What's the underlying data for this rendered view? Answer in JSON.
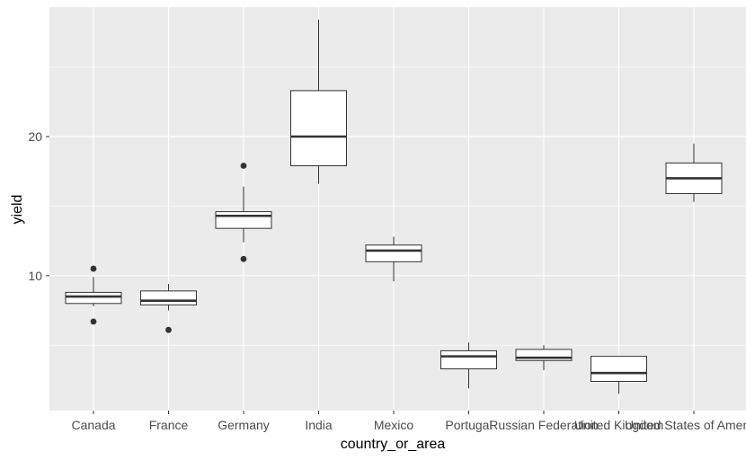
{
  "chart_data": {
    "type": "boxplot",
    "xlabel": "country_or_area",
    "ylabel": "yield",
    "ylim": [
      0.3,
      29.3
    ],
    "yticks": [
      10,
      20
    ],
    "grid": true,
    "categories": [
      "Canada",
      "France",
      "Germany",
      "India",
      "Mexico",
      "Portugal",
      "Russian Federation",
      "United Kingdom",
      "United States of America"
    ],
    "boxes": [
      {
        "category": "Canada",
        "whisker_low": 7.8,
        "q1": 8.0,
        "median": 8.5,
        "q3": 8.8,
        "whisker_high": 9.9,
        "outliers": [
          6.7,
          10.5
        ]
      },
      {
        "category": "France",
        "whisker_low": 7.5,
        "q1": 7.9,
        "median": 8.2,
        "q3": 8.9,
        "whisker_high": 9.4,
        "outliers": [
          6.1
        ]
      },
      {
        "category": "Germany",
        "whisker_low": 12.4,
        "q1": 13.4,
        "median": 14.3,
        "q3": 14.6,
        "whisker_high": 16.4,
        "outliers": [
          11.2,
          17.9
        ]
      },
      {
        "category": "India",
        "whisker_low": 16.6,
        "q1": 17.9,
        "median": 20.0,
        "q3": 23.3,
        "whisker_high": 28.4,
        "outliers": []
      },
      {
        "category": "Mexico",
        "whisker_low": 9.6,
        "q1": 11.0,
        "median": 11.8,
        "q3": 12.2,
        "whisker_high": 12.8,
        "outliers": []
      },
      {
        "category": "Portugal",
        "whisker_low": 1.9,
        "q1": 3.3,
        "median": 4.2,
        "q3": 4.6,
        "whisker_high": 5.2,
        "outliers": []
      },
      {
        "category": "Russian Federation",
        "whisker_low": 3.2,
        "q1": 3.9,
        "median": 4.1,
        "q3": 4.7,
        "whisker_high": 5.0,
        "outliers": []
      },
      {
        "category": "United Kingdom",
        "whisker_low": 1.5,
        "q1": 2.4,
        "median": 3.0,
        "q3": 4.2,
        "whisker_high": 4.2,
        "outliers": []
      },
      {
        "category": "United States of America",
        "whisker_low": 15.3,
        "q1": 15.9,
        "median": 17.0,
        "q3": 18.1,
        "whisker_high": 19.5,
        "outliers": []
      }
    ],
    "colors": {
      "panel": "#ebebeb",
      "grid_major": "#ffffff",
      "box_fill": "#ffffff",
      "box_stroke": "#333333",
      "outlier": "#333333",
      "tick_text": "#4d4d4d"
    }
  }
}
